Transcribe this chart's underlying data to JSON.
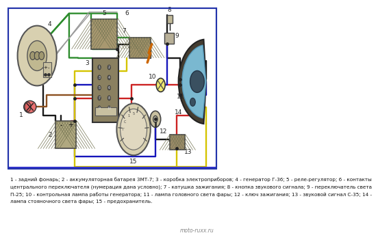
{
  "background_color": "#ffffff",
  "diagram_bg": "#f0ece0",
  "caption_lines": [
    "1 - задний фонарь; 2 - аккумуляторная батарея 3МТ-7; 3 - коробка электроприборов; 4 - генератор Г-36; 5 - реле-регулятор; 6 - контакты",
    "центрального переключателя (нумерация дана условно); 7 - катушка зажигания; 8 - кнопка звукового сигнала; 9 - переключатель света",
    "П-25; 10 - контрольная лампа работы генератора; 11 - лампа головного света фары; 12 - ключ зажигания; 13 - звуковой сигнал С-35; 14 -",
    "лампа стояночного света фары; 15 - предохранитель."
  ],
  "watermark": "moto-ruxx.ru",
  "wire_colors": {
    "green": "#2d8c2d",
    "red": "#cc2222",
    "blue": "#1515bb",
    "yellow": "#d4c400",
    "black": "#1a1a1a",
    "brown": "#8B5020",
    "gray": "#888888",
    "dark_green": "#1a6b1a"
  },
  "caption_fontsize": 5.2,
  "watermark_fontsize": 5.5,
  "label_fontsize": 6.5
}
